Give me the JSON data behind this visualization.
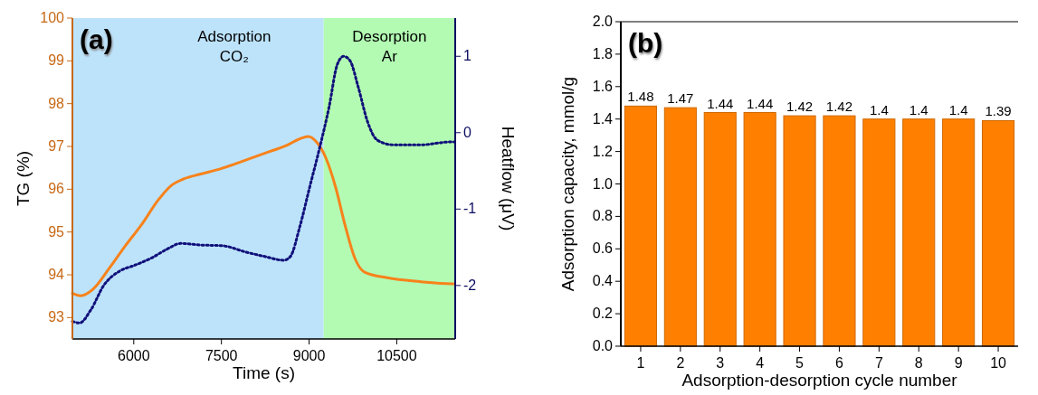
{
  "chart_data": [
    {
      "type": "line",
      "title": "(a)",
      "xlabel": "Time (s)",
      "ylabel": "TG (%)",
      "y2label": "Heatflow (μV)",
      "xlim": [
        4950,
        11500
      ],
      "xticks": [
        6000,
        7500,
        9000,
        10500
      ],
      "ylim": [
        92.5,
        100
      ],
      "yticks": [
        93,
        94,
        95,
        96,
        97,
        98,
        99,
        100
      ],
      "y2lim": [
        -2.7,
        1.5
      ],
      "y2ticks": [
        -2,
        -1,
        0,
        1
      ],
      "bands": [
        {
          "axis": "x",
          "from": 4950,
          "to": 9250,
          "label": "Adsorption\nCO₂",
          "color": "#bde3fb"
        },
        {
          "axis": "x",
          "from": 9250,
          "to": 11500,
          "label": "Desorption\nAr",
          "color": "#b3fbb3"
        }
      ],
      "series": [
        {
          "color": "#f7821b",
          "line_style": "solid",
          "x": [
            4950,
            5089,
            5309,
            5585,
            5862,
            6138,
            6414,
            6635,
            6856,
            7132,
            7492,
            7851,
            8238,
            8624,
            8845,
            8983,
            9122,
            9287,
            9453,
            9619,
            9785,
            9950,
            10337,
            10890,
            11442,
            11480
          ],
          "values": [
            93.57,
            93.51,
            93.67,
            94.16,
            94.69,
            95.18,
            95.74,
            96.08,
            96.24,
            96.35,
            96.48,
            96.65,
            96.84,
            97.03,
            97.18,
            97.23,
            97.11,
            96.73,
            96.05,
            95.14,
            94.38,
            94.06,
            93.93,
            93.84,
            93.79,
            93.79
          ]
        },
        {
          "color": "#10107a",
          "line_style": "dotted",
          "axis": "y2",
          "x": [
            4950,
            5073,
            5265,
            5486,
            5762,
            6000,
            6304,
            6580,
            6801,
            7132,
            7519,
            7906,
            8238,
            8569,
            8680,
            8845,
            9011,
            9177,
            9343,
            9481,
            9591,
            9702,
            9840,
            10006,
            10171,
            10448,
            10890,
            11442,
            11480
          ],
          "values": [
            -2.47,
            -2.49,
            -2.32,
            -2.0,
            -1.81,
            -1.74,
            -1.64,
            -1.52,
            -1.45,
            -1.47,
            -1.48,
            -1.56,
            -1.62,
            -1.67,
            -1.62,
            -1.22,
            -0.71,
            -0.21,
            0.34,
            0.89,
            1.0,
            0.94,
            0.6,
            0.13,
            -0.1,
            -0.16,
            -0.16,
            -0.12,
            -0.12
          ]
        }
      ]
    },
    {
      "type": "bar",
      "title": "(b)",
      "xlabel": "Adsorption-desorption cycle number",
      "ylabel": "Adsorption capacity, mmol/g",
      "categories": [
        "1",
        "2",
        "3",
        "4",
        "5",
        "6",
        "7",
        "8",
        "9",
        "10"
      ],
      "ylim": [
        0,
        2
      ],
      "yticks": [
        {
          "value": 0,
          "label": "0.0"
        },
        {
          "value": 0.2,
          "label": "0.2"
        },
        {
          "value": 0.4,
          "label": "0.4"
        },
        {
          "value": 0.6,
          "label": "0.6"
        },
        {
          "value": 0.8,
          "label": "0.8"
        },
        {
          "value": 1,
          "label": "1.0"
        },
        {
          "value": 1.2,
          "label": "1.2"
        },
        {
          "value": 1.4,
          "label": "1.4"
        },
        {
          "value": 1.6,
          "label": "1.6"
        },
        {
          "value": 1.8,
          "label": "1.8"
        },
        {
          "value": 2,
          "label": "2.0"
        }
      ],
      "data_labels": true,
      "series": [
        {
          "color": "#ff8000",
          "values": [
            1.48,
            1.47,
            1.44,
            1.44,
            1.42,
            1.42,
            1.4,
            1.4,
            1.4,
            1.39
          ]
        }
      ]
    }
  ]
}
